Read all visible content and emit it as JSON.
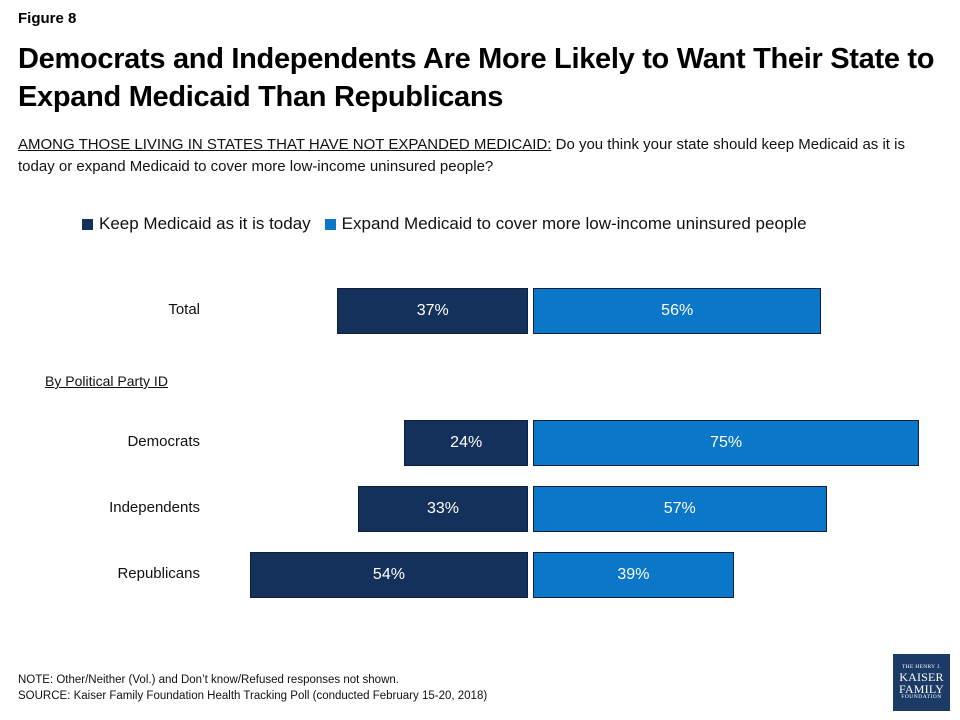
{
  "figure_label": "Figure 8",
  "title": "Democrats and Independents Are More Likely to Want Their State to Expand Medicaid Than Republicans",
  "question": {
    "prefix": "AMONG THOSE LIVING IN STATES THAT HAVE NOT EXPANDED MEDICAID:",
    "text": " Do you think your state should keep Medicaid as it is today or expand Medicaid to cover more low-income uninsured people?"
  },
  "group_heading": "By Political Party ID",
  "colors": {
    "keep": "#13315b",
    "expand": "#0a77c9"
  },
  "chart_data": {
    "type": "bar",
    "orientation": "horizontal-diverging",
    "categories": [
      "Total",
      "Democrats",
      "Independents",
      "Republicans"
    ],
    "series": [
      {
        "name": "Keep Medicaid as it is today",
        "values": [
          37,
          24,
          33,
          54
        ]
      },
      {
        "name": "Expand Medicaid to cover more low-income uninsured people",
        "values": [
          56,
          75,
          57,
          39
        ]
      }
    ],
    "data_labels": [
      [
        "37%",
        "24%",
        "33%",
        "54%"
      ],
      [
        "56%",
        "75%",
        "57%",
        "39%"
      ]
    ],
    "legend_position": "top",
    "grid": false
  },
  "notes": {
    "note": "NOTE: Other/Neither (Vol.) and Don’t know/Refused responses not shown.",
    "source": "SOURCE: Kaiser Family Foundation Health Tracking Poll (conducted February 15-20, 2018)"
  },
  "logo": {
    "line1": "THE HENRY J.",
    "line2": "KAISER",
    "line3": "FAMILY",
    "line4": "FOUNDATION"
  }
}
